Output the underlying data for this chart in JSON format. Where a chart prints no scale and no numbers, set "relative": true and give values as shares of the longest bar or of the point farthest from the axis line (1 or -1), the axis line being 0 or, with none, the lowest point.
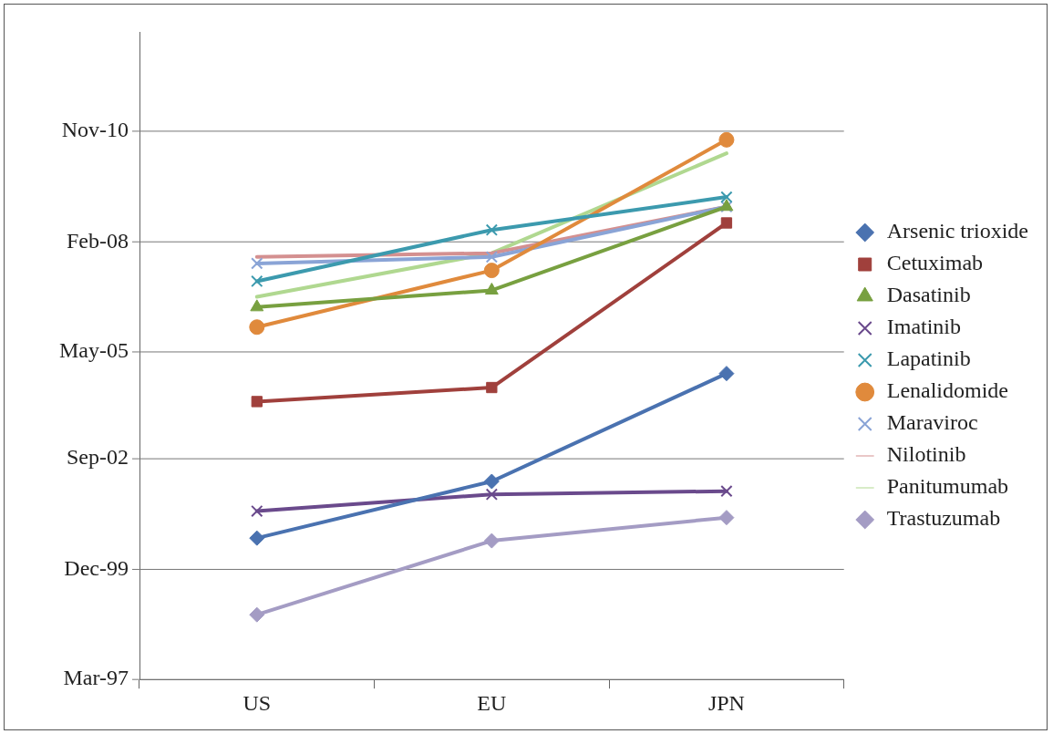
{
  "chart_data": {
    "type": "line",
    "categories": [
      "US",
      "EU",
      "JPN"
    ],
    "relative": true,
    "legend": "right",
    "ref_lines": [
      {
        "axis": "y",
        "value": 0,
        "label": "Mar-97",
        "color": "#777777"
      },
      {
        "axis": "y",
        "value": 0.204,
        "label": "Dec-99",
        "color": "#777777"
      },
      {
        "axis": "y",
        "value": 0.409,
        "label": "Sep-02",
        "color": "#777777"
      },
      {
        "axis": "y",
        "value": 0.607,
        "label": "May-05",
        "color": "#777777"
      },
      {
        "axis": "y",
        "value": 0.811,
        "label": "Feb-08",
        "color": "#777777"
      },
      {
        "axis": "y",
        "value": 1.016,
        "label": "Nov-10",
        "color": "#777777"
      }
    ],
    "series": [
      {
        "name": "Arsenic trioxide",
        "color": "#4a72b0",
        "marker": "diamond",
        "values": [
          0.262,
          0.367,
          0.567
        ]
      },
      {
        "name": "Cetuximab",
        "color": "#a0403c",
        "marker": "square",
        "values": [
          0.515,
          0.541,
          0.846
        ]
      },
      {
        "name": "Dasatinib",
        "color": "#78a040",
        "marker": "triangle",
        "values": [
          0.69,
          0.721,
          0.876
        ]
      },
      {
        "name": "Imatinib",
        "color": "#6a4a8c",
        "marker": "cross",
        "values": [
          0.312,
          0.343,
          0.349
        ]
      },
      {
        "name": "Lapatinib",
        "color": "#3c9aae",
        "marker": "cross",
        "values": [
          0.738,
          0.833,
          0.894
        ]
      },
      {
        "name": "Lenalidomide",
        "color": "#e08a3c",
        "marker": "circle",
        "values": [
          0.653,
          0.758,
          1
        ]
      },
      {
        "name": "Maraviroc",
        "color": "#8aa4d6",
        "marker": "cross",
        "values": [
          0.771,
          0.783,
          0.876
        ]
      },
      {
        "name": "Nilotinib",
        "color": "#d49090",
        "marker": "none",
        "values": [
          0.783,
          0.79,
          0.876
        ]
      },
      {
        "name": "Panitumumab",
        "color": "#b0d890",
        "marker": "none",
        "values": [
          0.709,
          0.79,
          0.975
        ]
      },
      {
        "name": "Trastuzumab",
        "color": "#a49cc4",
        "marker": "diamond",
        "values": [
          0.12,
          0.257,
          0.3
        ]
      }
    ]
  }
}
